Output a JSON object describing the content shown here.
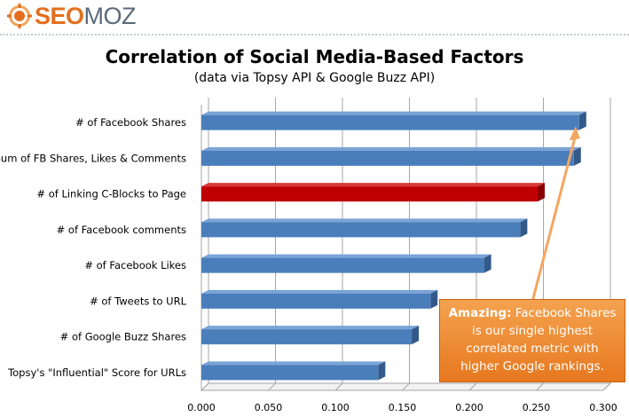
{
  "logo": {
    "seo": "SEO",
    "moz": "MOZ"
  },
  "chart_data": {
    "type": "bar",
    "orientation": "horizontal",
    "title": "Correlation of Social Media-Based Factors",
    "subtitle": "(data via Topsy API & Google Buzz API)",
    "categories": [
      "# of Facebook Shares",
      "Sum of FB Shares, Likes & Comments",
      "# of Linking C-Blocks to Page",
      "# of Facebook comments",
      "# of Facebook Likes",
      "# of Tweets to URL",
      "# of Google Buzz Shares",
      "Topsy's \"Influential\" Score for URLs"
    ],
    "values": [
      0.282,
      0.278,
      0.251,
      0.238,
      0.211,
      0.171,
      0.157,
      0.132
    ],
    "highlight_index": 2,
    "colors": {
      "bar": "#4a7ebb",
      "highlight": "#c00000",
      "grid": "#a6a6a6",
      "callout": "#ed8a2f",
      "arrow": "#f3a562"
    },
    "xlim": [
      0,
      0.3
    ],
    "xticks": [
      "0.000",
      "0.050",
      "0.100",
      "0.150",
      "0.200",
      "0.250",
      "0.300"
    ],
    "grid": true,
    "legend": "none",
    "xlabel": "",
    "ylabel": ""
  },
  "callout": {
    "bold": "Amazing:",
    "text_line1": "Facebook Shares",
    "text_line2": "is our single highest",
    "text_line3": "correlated metric with",
    "text_line4": "higher Google rankings."
  }
}
